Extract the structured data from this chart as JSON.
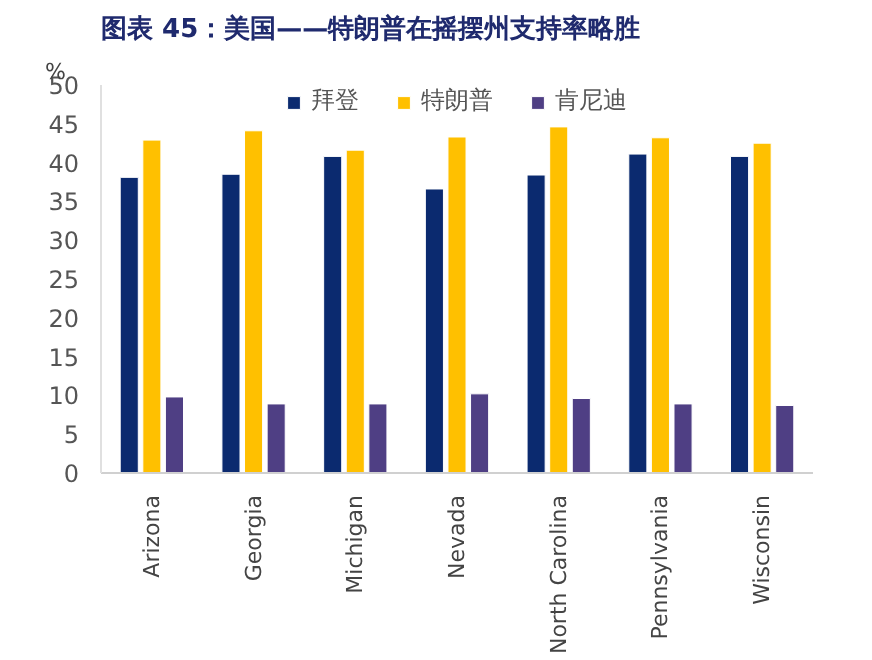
{
  "chart_data": {
    "type": "bar",
    "title": "图表 45：美国——特朗普在摇摆州支持率略胜",
    "ylabel": "%",
    "categories": [
      "Arizona",
      "Georgia",
      "Michigan",
      "Nevada",
      "North Carolina",
      "Pennsylvania",
      "Wisconsin"
    ],
    "series": [
      {
        "name": "拜登",
        "color": "#0b2a6f",
        "values": [
          38.1,
          38.5,
          40.8,
          36.6,
          38.4,
          41.1,
          40.8
        ]
      },
      {
        "name": "特朗普",
        "color": "#ffc000",
        "values": [
          42.9,
          44.1,
          41.6,
          43.3,
          44.6,
          43.2,
          42.5
        ]
      },
      {
        "name": "肯尼迪",
        "color": "#4f3f84",
        "values": [
          9.8,
          8.9,
          8.9,
          10.2,
          9.6,
          8.9,
          8.7
        ]
      }
    ],
    "ylim": [
      0,
      50
    ],
    "yticks": [
      0,
      5,
      10,
      15,
      20,
      25,
      30,
      35,
      40,
      45,
      50
    ],
    "grid": false,
    "legend": "top"
  }
}
